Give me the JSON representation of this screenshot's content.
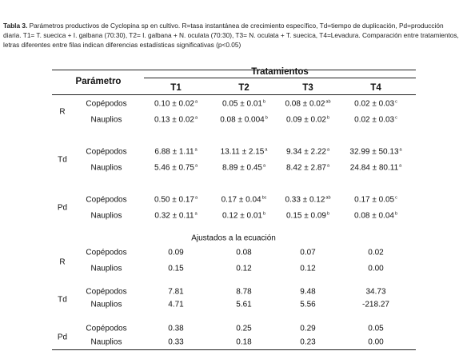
{
  "caption": {
    "label": "Tabla 3.",
    "text": "Parámetros productivos de Cyclopina sp en cultivo. R=tasa instantánea de crecimiento específico, Td=tiempo de duplicación, Pd=producción diaria. T1= T. suecica + I. galbana (70:30), T2= I. galbana + N. oculata (70:30), T3= N. oculata + T. suecica, T4=Levadura. Comparación entre tratamientos, letras diferentes entre filas indican diferencias estadísticas significativas (p<0.05)"
  },
  "table": {
    "header": {
      "parameter": "Parámetro",
      "group": "Tratamientos",
      "columns": [
        "T1",
        "T2",
        "T3",
        "T4"
      ]
    },
    "groups": [
      {
        "parameter": "R",
        "rows": [
          {
            "label": "Copépodos",
            "cells": [
              {
                "value": "0.10 ± 0.02",
                "sup": "a"
              },
              {
                "value": "0.05 ± 0.01",
                "sup": "b"
              },
              {
                "value": "0.08 ± 0.02",
                "sup": "ab"
              },
              {
                "value": "0.02 ± 0.03",
                "sup": "c"
              }
            ]
          },
          {
            "label": "Nauplios",
            "cells": [
              {
                "value": "0.13 ± 0.02",
                "sup": "a"
              },
              {
                "value": "0.08 ± 0.004",
                "sup": "b"
              },
              {
                "value": "0.09 ± 0.02",
                "sup": "b"
              },
              {
                "value": "0.02 ± 0.03",
                "sup": "c"
              }
            ]
          }
        ]
      },
      {
        "parameter": "Td",
        "rows": [
          {
            "label": "Copépodos",
            "cells": [
              {
                "value": "6.88 ± 1.11",
                "sup": "a"
              },
              {
                "value": "13.11 ± 2.15",
                "sup": "a"
              },
              {
                "value": "9.34 ± 2.22",
                "sup": "a"
              },
              {
                "value": "32.99 ± 50.13",
                "sup": "a"
              }
            ]
          },
          {
            "label": "Nauplios",
            "cells": [
              {
                "value": "5.46 ± 0.75",
                "sup": "a"
              },
              {
                "value": "8.89 ± 0.45",
                "sup": "a"
              },
              {
                "value": "8.42 ± 2.87",
                "sup": "a"
              },
              {
                "value": "24.84 ± 80.11",
                "sup": "a"
              }
            ]
          }
        ]
      },
      {
        "parameter": "Pd",
        "rows": [
          {
            "label": "Copépodos",
            "cells": [
              {
                "value": "0.50 ± 0.17",
                "sup": "a"
              },
              {
                "value": "0.17 ± 0.04",
                "sup": "bc"
              },
              {
                "value": "0.33 ± 0.12",
                "sup": "ab"
              },
              {
                "value": "0.17 ± 0.05",
                "sup": "c"
              }
            ]
          },
          {
            "label": "Nauplios",
            "cells": [
              {
                "value": "0.32 ± 0.11",
                "sup": "a"
              },
              {
                "value": "0.12 ± 0.01",
                "sup": "b"
              },
              {
                "value": "0.15 ± 0.09",
                "sup": "b"
              },
              {
                "value": "0.08 ± 0.04",
                "sup": "b"
              }
            ]
          }
        ]
      }
    ],
    "adjusted": {
      "title": "Ajustados a la ecuación",
      "groups": [
        {
          "parameter": "R",
          "rows": [
            {
              "label": "Copépodos",
              "cells": [
                "0.09",
                "0.08",
                "0.07",
                "0.02"
              ]
            },
            {
              "label": "Nauplios",
              "cells": [
                "0.15",
                "0.12",
                "0.12",
                "0.00"
              ]
            }
          ]
        },
        {
          "parameter": "Td",
          "rows": [
            {
              "label": "Copépodos",
              "cells": [
                "7.81",
                "8.78",
                "9.48",
                "34.73"
              ]
            },
            {
              "label": "Nauplios",
              "cells": [
                "4.71",
                "5.61",
                "5.56",
                "-218.27"
              ]
            }
          ]
        },
        {
          "parameter": "Pd",
          "rows": [
            {
              "label": "Copépodos",
              "cells": [
                "0.38",
                "0.25",
                "0.29",
                "0.05"
              ]
            },
            {
              "label": "Nauplios",
              "cells": [
                "0.33",
                "0.18",
                "0.23",
                "0.00"
              ]
            }
          ]
        }
      ]
    }
  }
}
